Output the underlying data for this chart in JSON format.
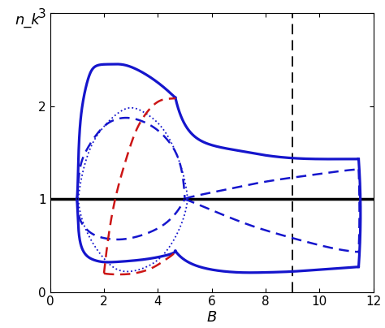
{
  "xlim": [
    0,
    12
  ],
  "ylim": [
    0,
    3
  ],
  "xlabel": "B",
  "ylabel": "n_k",
  "xticks": [
    0,
    2,
    4,
    6,
    8,
    10,
    12
  ],
  "yticks": [
    0,
    1,
    2,
    3
  ],
  "hline_y": 1.0,
  "hline_lw": 2.5,
  "dotted_hline_xstart": 0.85,
  "dotted_hline_xend": 5.1,
  "vline_x": 9.0,
  "blue_color": "#1515CC",
  "red_color": "#CC1515",
  "lw_solid": 2.3,
  "lw_dashed": 1.8,
  "lw_dotted": 1.3,
  "figsize": [
    4.74,
    4.04
  ],
  "dpi": 100
}
